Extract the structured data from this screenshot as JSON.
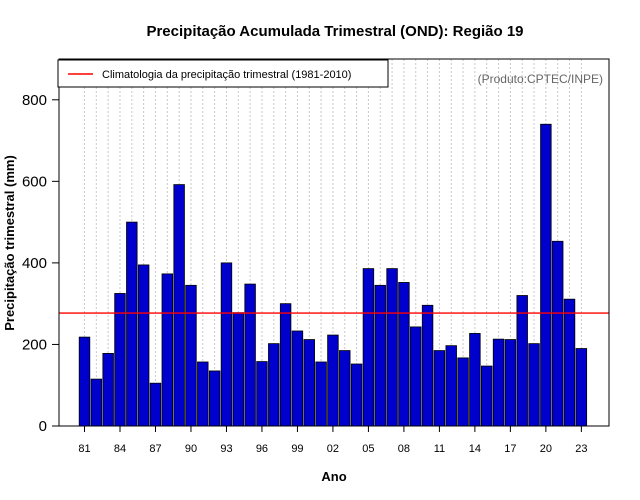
{
  "chart_data": {
    "type": "bar",
    "title": "Precipitação Acumulada Trimestral (OND): Região 19",
    "xlabel": "Ano",
    "ylabel": "Precipitação trimestral (mm)",
    "ylim": [
      0,
      900
    ],
    "yticks": [
      0,
      200,
      400,
      600,
      800
    ],
    "xtick_labels": [
      "81",
      "84",
      "87",
      "90",
      "93",
      "96",
      "99",
      "02",
      "05",
      "08",
      "11",
      "14",
      "17",
      "20",
      "23"
    ],
    "xtick_step": 3,
    "categories": [
      "1981",
      "1982",
      "1983",
      "1984",
      "1985",
      "1986",
      "1987",
      "1988",
      "1989",
      "1990",
      "1991",
      "1992",
      "1993",
      "1994",
      "1995",
      "1996",
      "1997",
      "1998",
      "1999",
      "2000",
      "2001",
      "2002",
      "2003",
      "2004",
      "2005",
      "2006",
      "2007",
      "2008",
      "2009",
      "2010",
      "2011",
      "2012",
      "2013",
      "2014",
      "2015",
      "2016",
      "2017",
      "2018",
      "2019",
      "2020",
      "2021",
      "2022",
      "2023"
    ],
    "values": [
      218,
      115,
      178,
      325,
      500,
      395,
      105,
      373,
      592,
      345,
      157,
      135,
      400,
      278,
      348,
      158,
      202,
      300,
      233,
      212,
      157,
      223,
      185,
      152,
      386,
      345,
      386,
      352,
      243,
      296,
      185,
      197,
      167,
      227,
      147,
      213,
      212,
      320,
      202,
      740,
      453,
      311,
      190
    ],
    "climatology": 277,
    "grid": true,
    "bar_color": "#0000CD",
    "line_color": "#FF0000",
    "legend": {
      "label": "Climatologia da precipitação trimestral (1981-2010)",
      "position": "top-left"
    },
    "credit": "(Produto:CPTEC/INPE)"
  }
}
